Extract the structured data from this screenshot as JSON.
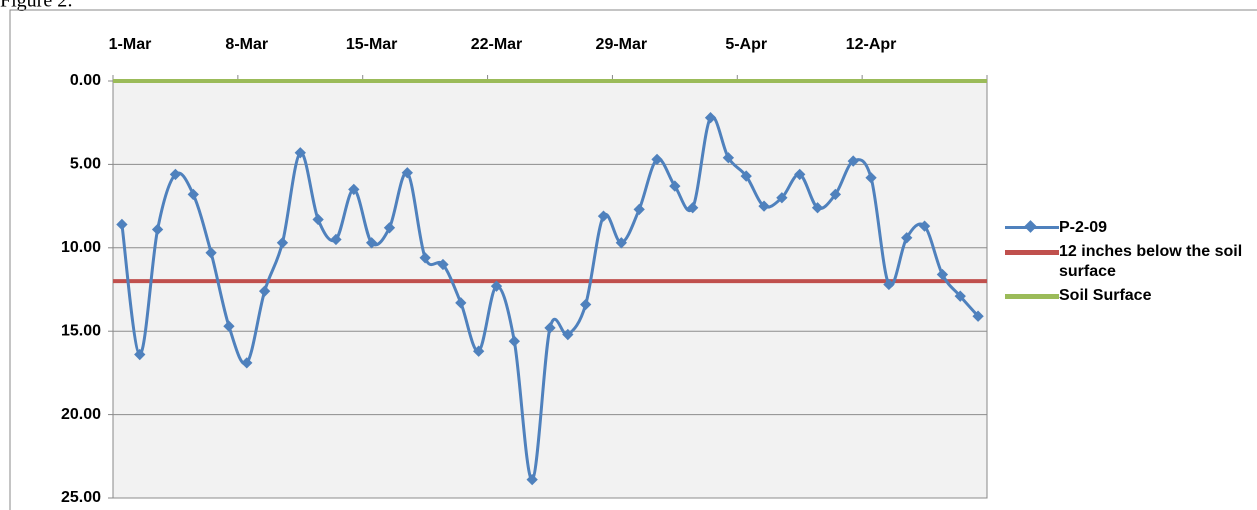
{
  "figure_label": "Figure 2:",
  "chart_data": {
    "type": "line",
    "categories": [
      "1-Mar",
      null,
      null,
      null,
      null,
      null,
      null,
      "8-Mar",
      null,
      null,
      null,
      null,
      null,
      null,
      "15-Mar",
      null,
      null,
      null,
      null,
      null,
      null,
      "22-Mar",
      null,
      null,
      null,
      null,
      null,
      null,
      "29-Mar",
      null,
      null,
      null,
      null,
      null,
      null,
      "5-Apr",
      null,
      null,
      null,
      null,
      null,
      null,
      "12-Apr",
      null,
      null,
      null,
      null,
      null,
      null
    ],
    "series": [
      {
        "name": "P-2-09",
        "color": "#4f81bd",
        "marker": "diamond",
        "smooth": true,
        "values": [
          8.6,
          16.4,
          8.9,
          5.6,
          6.8,
          10.3,
          14.7,
          16.9,
          12.6,
          9.7,
          4.3,
          8.3,
          9.5,
          6.5,
          9.7,
          8.8,
          5.5,
          10.6,
          11.0,
          13.3,
          16.2,
          12.3,
          15.6,
          23.9,
          14.8,
          15.2,
          13.4,
          8.1,
          9.7,
          7.7,
          4.7,
          6.3,
          7.6,
          2.2,
          4.6,
          5.7,
          7.5,
          7.0,
          5.6,
          7.6,
          6.8,
          4.8,
          5.8,
          12.2,
          9.4,
          8.7,
          11.6,
          12.9,
          14.1
        ]
      },
      {
        "name": "12 inches below the soil surface",
        "color": "#c0504d",
        "values": [
          12,
          12,
          12,
          12,
          12,
          12,
          12,
          12,
          12,
          12,
          12,
          12,
          12,
          12,
          12,
          12,
          12,
          12,
          12,
          12,
          12,
          12,
          12,
          12,
          12,
          12,
          12,
          12,
          12,
          12,
          12,
          12,
          12,
          12,
          12,
          12,
          12,
          12,
          12,
          12,
          12,
          12,
          12,
          12,
          12,
          12,
          12,
          12,
          12
        ]
      },
      {
        "name": "Soil Surface",
        "color": "#9bbb59",
        "values": [
          0,
          0,
          0,
          0,
          0,
          0,
          0,
          0,
          0,
          0,
          0,
          0,
          0,
          0,
          0,
          0,
          0,
          0,
          0,
          0,
          0,
          0,
          0,
          0,
          0,
          0,
          0,
          0,
          0,
          0,
          0,
          0,
          0,
          0,
          0,
          0,
          0,
          0,
          0,
          0,
          0,
          0,
          0,
          0,
          0,
          0,
          0,
          0,
          0
        ]
      }
    ],
    "ylim": [
      0,
      25
    ],
    "y_reversed": true,
    "yticks": [
      {
        "value": 0,
        "label": "0.00"
      },
      {
        "value": 5,
        "label": "5.00"
      },
      {
        "value": 10,
        "label": "10.00"
      },
      {
        "value": 15,
        "label": "15.00"
      },
      {
        "value": 20,
        "label": "20.00"
      },
      {
        "value": 25,
        "label": "25.00"
      }
    ],
    "grid": true,
    "xtick_every": 7,
    "legend": "right"
  }
}
